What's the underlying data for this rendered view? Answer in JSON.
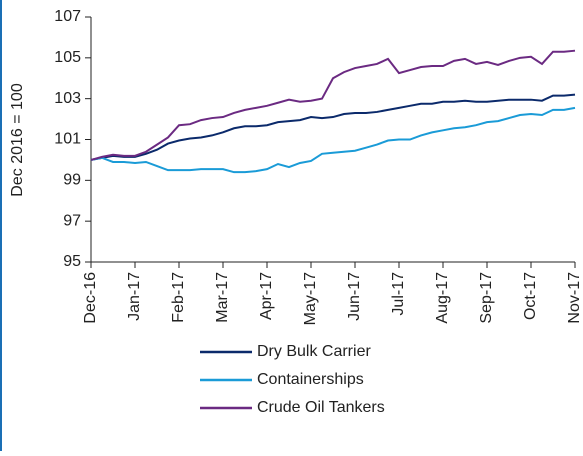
{
  "chart_data": {
    "type": "line",
    "ylabel": "Dec 2016 = 100",
    "categories": [
      "Dec-16",
      null,
      null,
      null,
      "Jan-17",
      null,
      null,
      null,
      "Feb-17",
      null,
      null,
      null,
      "Mar-17",
      null,
      null,
      null,
      "Apr-17",
      null,
      null,
      null,
      "May-17",
      null,
      null,
      null,
      "Jun-17",
      null,
      null,
      null,
      "Jul-17",
      null,
      null,
      null,
      "Aug-17",
      null,
      null,
      null,
      "Sep-17",
      null,
      null,
      null,
      "Oct-17",
      null,
      null,
      null,
      "Nov-17"
    ],
    "series": [
      {
        "name": "Dry Bulk Carrier",
        "color": "#0b2a6b",
        "values": [
          100,
          100.1,
          100.2,
          100.15,
          100.15,
          100.3,
          100.5,
          100.8,
          100.95,
          101.05,
          101.1,
          101.2,
          101.35,
          101.55,
          101.65,
          101.65,
          101.7,
          101.85,
          101.9,
          101.95,
          102.1,
          102.05,
          102.1,
          102.25,
          102.3,
          102.3,
          102.35,
          102.45,
          102.55,
          102.65,
          102.75,
          102.75,
          102.85,
          102.85,
          102.9,
          102.85,
          102.85,
          102.9,
          102.95,
          102.95,
          102.95,
          102.9,
          103.15,
          103.15,
          103.2
        ]
      },
      {
        "name": "Containerships",
        "color": "#1a9bd7",
        "values": [
          100,
          100.1,
          99.9,
          99.9,
          99.85,
          99.9,
          99.7,
          99.5,
          99.5,
          99.5,
          99.55,
          99.55,
          99.55,
          99.4,
          99.4,
          99.45,
          99.55,
          99.8,
          99.65,
          99.85,
          99.95,
          100.3,
          100.35,
          100.4,
          100.45,
          100.6,
          100.75,
          100.95,
          101.0,
          101.0,
          101.2,
          101.35,
          101.45,
          101.55,
          101.6,
          101.7,
          101.85,
          101.9,
          102.05,
          102.2,
          102.25,
          102.2,
          102.45,
          102.45,
          102.55
        ]
      },
      {
        "name": "Crude Oil Tankers",
        "color": "#6b2a82",
        "values": [
          100,
          100.15,
          100.25,
          100.2,
          100.2,
          100.4,
          100.75,
          101.1,
          101.7,
          101.75,
          101.95,
          102.05,
          102.1,
          102.3,
          102.45,
          102.55,
          102.65,
          102.8,
          102.95,
          102.85,
          102.9,
          103.0,
          104.0,
          104.3,
          104.5,
          104.6,
          104.7,
          104.95,
          104.25,
          104.4,
          104.55,
          104.6,
          104.6,
          104.85,
          104.95,
          104.7,
          104.8,
          104.65,
          104.85,
          105.0,
          105.05,
          104.7,
          105.3,
          105.3,
          105.35
        ]
      }
    ],
    "ylim": [
      95,
      107
    ],
    "yticks": [
      95,
      97,
      99,
      101,
      103,
      105,
      107
    ],
    "grid": false
  }
}
